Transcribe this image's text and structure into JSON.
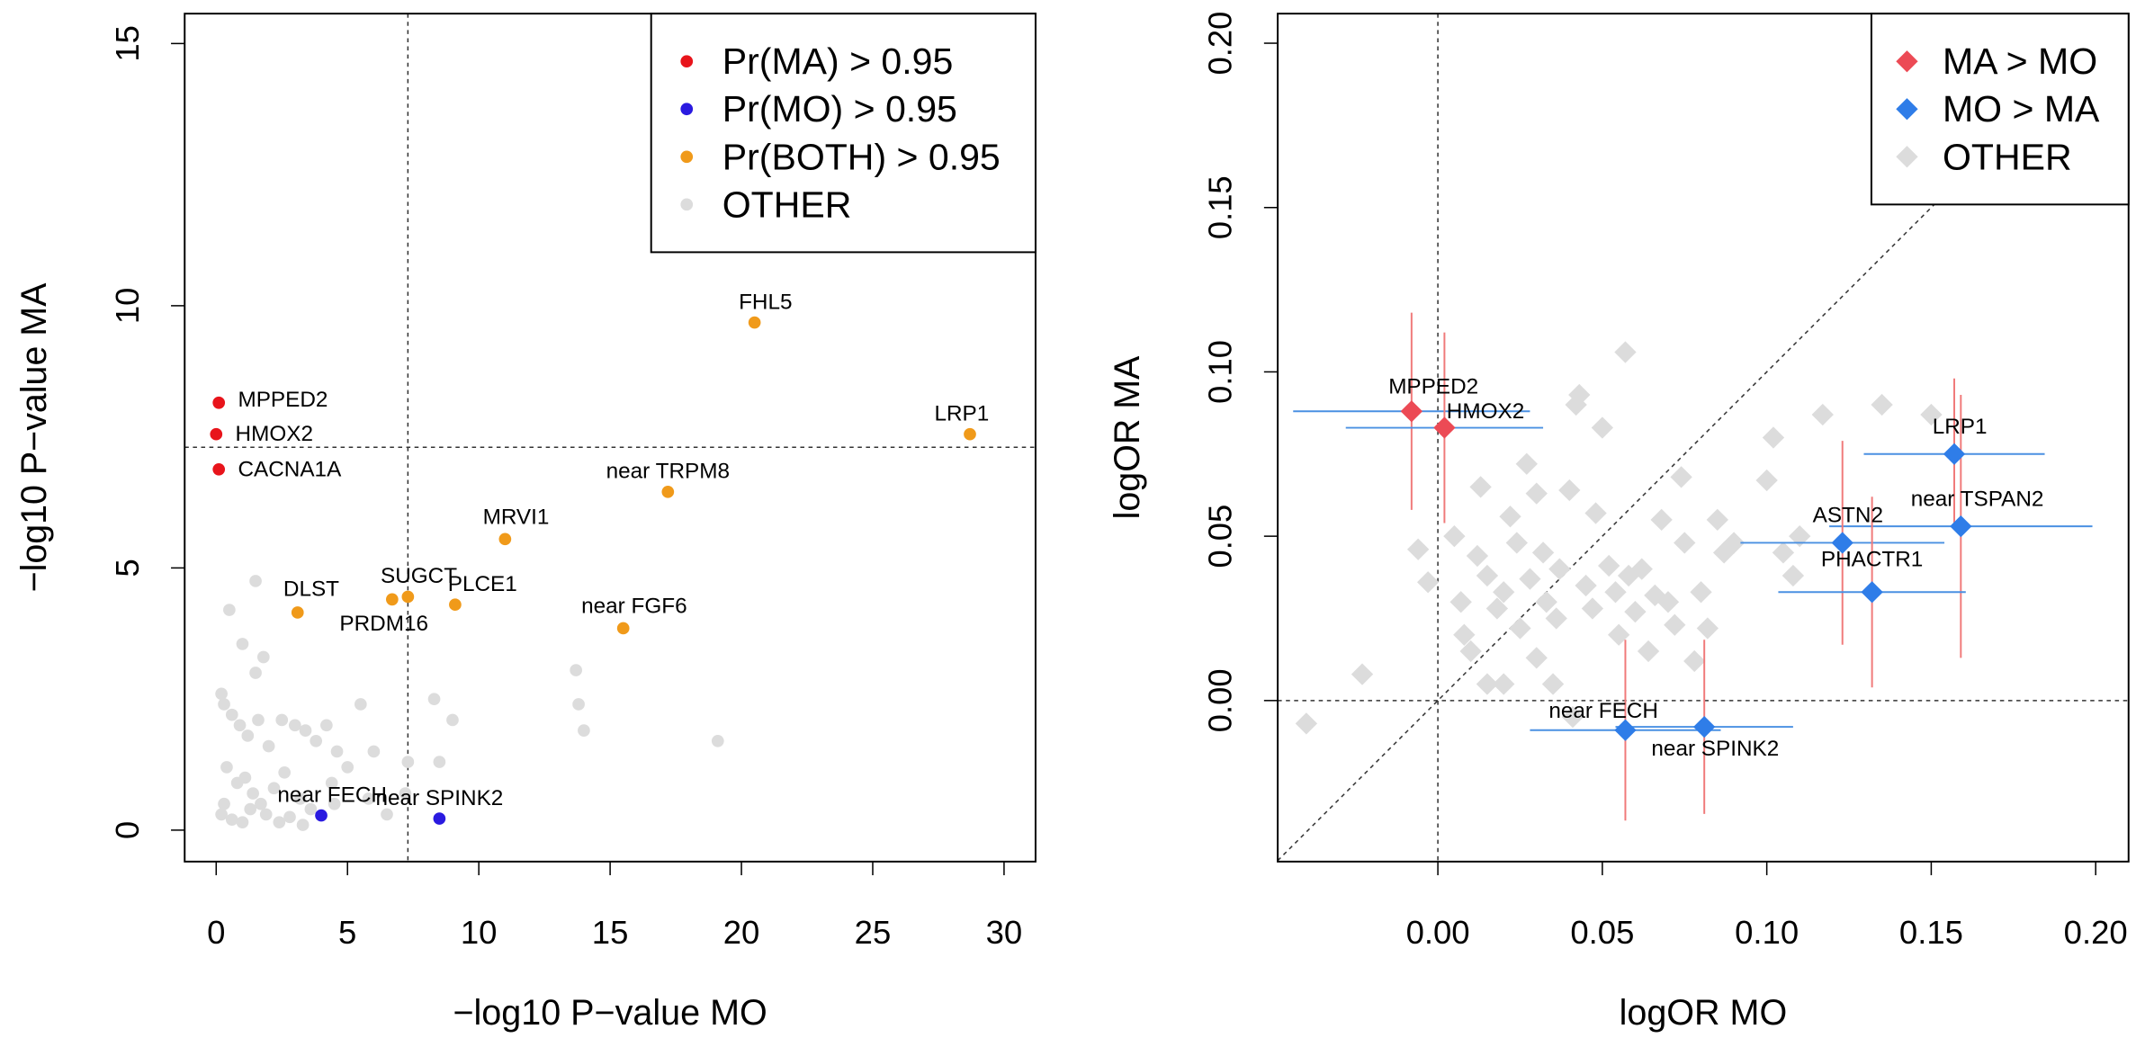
{
  "chart_data": [
    {
      "type": "scatter",
      "xlabel": "−log10 P−value MO",
      "ylabel": "−log10 P−value MA",
      "marker": "circle",
      "legend": "topright",
      "xlim": [
        -1.2,
        31.2
      ],
      "ylim": [
        -0.6,
        15.57
      ],
      "xticks": [
        0,
        5,
        10,
        15,
        20,
        25,
        30
      ],
      "yticks": [
        0,
        5,
        10,
        15
      ],
      "vlines": [
        7.3
      ],
      "hlines": [
        7.3
      ],
      "diagonal": false,
      "series": [
        {
          "name": "Pr(MA) > 0.95",
          "color": "#e8141b",
          "x": [
            0.1,
            0,
            0.1
          ],
          "y": [
            8.15,
            7.55,
            6.88
          ],
          "labels": [
            "MPPED2",
            "HMOX2",
            "CACNA1A"
          ]
        },
        {
          "name": "Pr(MO) > 0.95",
          "color": "#2a1ae0",
          "x": [
            4.0,
            8.5
          ],
          "y": [
            0.28,
            0.22
          ],
          "labels": [
            "near FECH",
            "near SPINK2"
          ]
        },
        {
          "name": "Pr(BOTH) > 0.95",
          "color": "#f09a1a",
          "x": [
            20.5,
            28.7,
            17.2,
            11,
            7.3,
            9.1,
            6.7,
            3.1,
            15.5
          ],
          "y": [
            9.68,
            7.55,
            6.45,
            5.55,
            4.45,
            4.3,
            4.4,
            4.15,
            3.85
          ],
          "labels": [
            "FHL5",
            "LRP1",
            "near TRPM8",
            "MRVI1",
            "SUGCT",
            "PLCE1",
            "PRDM16",
            "DLST",
            "near FGF6"
          ]
        },
        {
          "name": "OTHER",
          "color": "#dcdcdc",
          "x": [
            1.5,
            0.5,
            1.0,
            1.5,
            1.8,
            0.2,
            0.3,
            0.6,
            0.9,
            1.2,
            1.6,
            2.0,
            2.5,
            3.0,
            3.4,
            3.8,
            4.2,
            4.6,
            5.0,
            5.5,
            6.0,
            7.3,
            0.4,
            0.8,
            1.1,
            1.4,
            1.7,
            2.2,
            2.6,
            3.2,
            3.6,
            4.5,
            5.8,
            7.2,
            0.2,
            0.6,
            1.0,
            1.9,
            2.8,
            3.3,
            0.3,
            1.3,
            8.3,
            9.0,
            8.5,
            13.7,
            13.8,
            14.0,
            19.1,
            2.4,
            6.5,
            4.4
          ],
          "y": [
            4.75,
            4.2,
            3.55,
            3.0,
            3.3,
            2.6,
            2.4,
            2.2,
            2.0,
            1.8,
            2.1,
            1.6,
            2.1,
            2.0,
            1.9,
            1.7,
            2.0,
            1.5,
            1.2,
            2.4,
            1.5,
            1.3,
            1.2,
            0.9,
            1.0,
            0.7,
            0.5,
            0.8,
            1.1,
            0.6,
            0.4,
            0.5,
            0.6,
            0.7,
            0.3,
            0.2,
            0.15,
            0.3,
            0.25,
            0.1,
            0.5,
            0.4,
            2.5,
            2.1,
            1.3,
            3.05,
            2.4,
            1.9,
            1.7,
            0.15,
            0.3,
            0.9
          ]
        }
      ]
    },
    {
      "type": "scatter",
      "xlabel": "logOR MO",
      "ylabel": "logOR MA",
      "marker": "diamond",
      "legend": "topright",
      "xerr_color": "#4a90e2",
      "yerr_color": "#f07a7a",
      "xlim": [
        -0.0487,
        0.21
      ],
      "ylim": [
        -0.049,
        0.209
      ],
      "xticks": [
        {
          "value": 0,
          "label": "0.00"
        },
        0.05,
        {
          "value": 0.1,
          "label": "0.10"
        },
        0.15,
        {
          "value": 0.2,
          "label": "0.20"
        }
      ],
      "yticks": [
        {
          "value": 0,
          "label": "0.00"
        },
        0.05,
        {
          "value": 0.1,
          "label": "0.10"
        },
        0.15,
        {
          "value": 0.2,
          "label": "0.20"
        }
      ],
      "vlines": [
        0
      ],
      "hlines": [
        0
      ],
      "diagonal": true,
      "series": [
        {
          "name": "MA > MO",
          "color": "#ec4a55",
          "x": [
            -0.008,
            0.002
          ],
          "y": [
            0.088,
            0.083
          ],
          "xerr": [
            0.036,
            0.03
          ],
          "yerr": [
            0.03,
            0.029
          ],
          "labels": [
            "MPPED2",
            "HMOX2"
          ]
        },
        {
          "name": "MO > MA",
          "color": "#2f7de8",
          "x": [
            0.157,
            0.159,
            0.123,
            0.132,
            0.057,
            0.081
          ],
          "y": [
            0.075,
            0.053,
            0.048,
            0.033,
            -0.009,
            -0.008
          ],
          "xerr": [
            0.0275,
            0.04,
            0.031,
            0.0285,
            0.029,
            0.027
          ],
          "yerr": [
            0.023,
            0.04,
            0.031,
            0.029,
            0.0275,
            0.0265
          ],
          "labels": [
            "LRP1",
            "near TSPAN2",
            "ASTN2",
            "PHACTR1",
            "near FECH",
            "near SPINK2"
          ]
        },
        {
          "name": "OTHER",
          "color": "#dcdcdc",
          "x": [
            -0.04,
            -0.023,
            -0.006,
            -0.003,
            0.005,
            0.007,
            0.008,
            0.01,
            0.012,
            0.013,
            0.015,
            0.018,
            0.02,
            0.022,
            0.024,
            0.025,
            0.027,
            0.028,
            0.03,
            0.032,
            0.033,
            0.035,
            0.036,
            0.037,
            0.04,
            0.042,
            0.043,
            0.045,
            0.047,
            0.048,
            0.05,
            0.052,
            0.054,
            0.055,
            0.057,
            0.058,
            0.06,
            0.062,
            0.064,
            0.066,
            0.068,
            0.07,
            0.072,
            0.074,
            0.075,
            0.078,
            0.08,
            0.082,
            0.085,
            0.087,
            0.09,
            0.1,
            0.102,
            0.105,
            0.108,
            0.11,
            0.117,
            0.135,
            0.15,
            0.041,
            0.02,
            0.03,
            0.015
          ],
          "y": [
            -0.007,
            0.008,
            0.046,
            0.036,
            0.05,
            0.03,
            0.02,
            0.015,
            0.044,
            0.065,
            0.038,
            0.028,
            0.033,
            0.056,
            0.048,
            0.022,
            0.072,
            0.037,
            0.013,
            0.045,
            0.03,
            0.005,
            0.025,
            0.04,
            0.064,
            0.09,
            0.093,
            0.035,
            0.028,
            0.057,
            0.083,
            0.041,
            0.033,
            0.02,
            0.106,
            0.038,
            0.027,
            0.04,
            0.015,
            0.032,
            0.055,
            0.03,
            0.023,
            0.068,
            0.048,
            0.012,
            0.033,
            0.022,
            0.055,
            0.045,
            0.048,
            0.067,
            0.08,
            0.045,
            0.038,
            0.05,
            0.087,
            0.09,
            0.087,
            -0.005,
            0.005,
            0.063,
            0.005
          ]
        }
      ]
    }
  ]
}
